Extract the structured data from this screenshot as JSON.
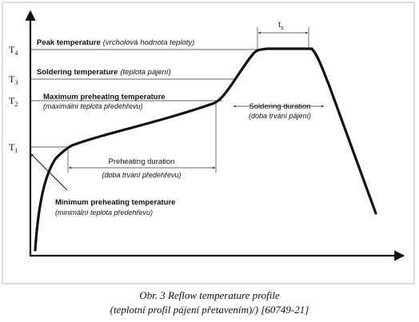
{
  "levels": {
    "T4": {
      "letter": "T",
      "sub": "4"
    },
    "T3": {
      "letter": "T",
      "sub": "3"
    },
    "T2": {
      "letter": "T",
      "sub": "2"
    },
    "T1": {
      "letter": "T",
      "sub": "1"
    }
  },
  "labels": {
    "peak": {
      "bold": "Peak temperature",
      "italic": "(vrcholová hodnota teploty)"
    },
    "soldering": {
      "bold": "Soldering temperature",
      "italic": "(teplota pájení)"
    },
    "max_preheat": {
      "bold": "Maximum preheating temperature",
      "italic": "(maximální teplota předehřevu)"
    },
    "preheat_duration": {
      "main": "Preheating duration",
      "italic": "(doba trvání předehřevu)"
    },
    "soldering_duration": {
      "main": "Soldering duration",
      "italic": "(doba trvání pájení)"
    },
    "min_preheat": {
      "bold": "Minimum preheating temperature",
      "italic": "(minimální teplota předehřevu)"
    },
    "ts": {
      "letter": "t",
      "sub": "s"
    }
  },
  "caption": {
    "line1": "Obr. 3  Reflow temperature profile",
    "line2": "(teplotní profil pájení přetavením)/) [60749-21]"
  },
  "colors": {
    "ink": "#111111",
    "frame": "#bdbdbd"
  }
}
